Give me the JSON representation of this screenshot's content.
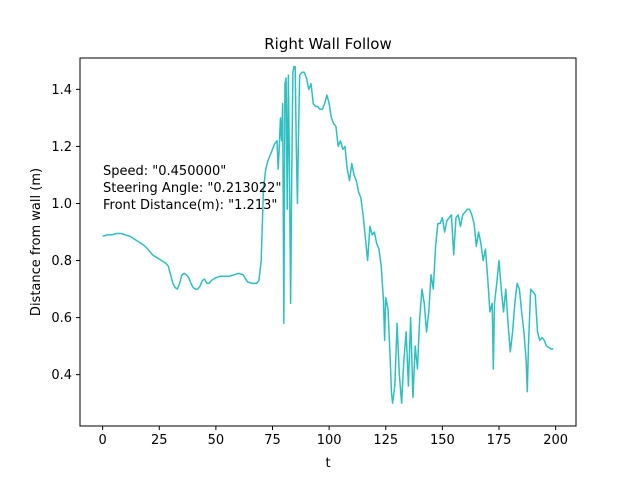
{
  "chart_data": {
    "type": "line",
    "title": "Right Wall Follow",
    "xlabel": "t",
    "ylabel": "Distance from wall (m)",
    "xlim": [
      -10,
      209
    ],
    "ylim": [
      0.22,
      1.51
    ],
    "xticks": [
      0,
      25,
      50,
      75,
      100,
      125,
      150,
      175,
      200
    ],
    "yticks": [
      0.4,
      0.6,
      0.8,
      1.0,
      1.2,
      1.4
    ],
    "ytick_labels": [
      "0.4",
      "0.6",
      "0.8",
      "1.0",
      "1.2",
      "1.4"
    ],
    "grid": false,
    "legend": "none",
    "annotation_lines": [
      "Speed: \"0.450000\"",
      "Steering Angle: \"0.213022\"",
      "Front Distance(m): \"1.213\""
    ],
    "series": [
      {
        "color": "#2ec0c0",
        "values": [
          [
            0,
            0.885
          ],
          [
            2,
            0.89
          ],
          [
            4,
            0.89
          ],
          [
            6,
            0.895
          ],
          [
            8,
            0.895
          ],
          [
            10,
            0.89
          ],
          [
            12,
            0.885
          ],
          [
            14,
            0.875
          ],
          [
            16,
            0.865
          ],
          [
            18,
            0.855
          ],
          [
            20,
            0.84
          ],
          [
            22,
            0.82
          ],
          [
            24,
            0.81
          ],
          [
            26,
            0.8
          ],
          [
            28,
            0.79
          ],
          [
            29,
            0.78
          ],
          [
            30,
            0.75
          ],
          [
            31,
            0.72
          ],
          [
            32,
            0.705
          ],
          [
            33,
            0.7
          ],
          [
            34,
            0.72
          ],
          [
            35,
            0.75
          ],
          [
            36,
            0.755
          ],
          [
            37,
            0.75
          ],
          [
            38,
            0.74
          ],
          [
            39,
            0.72
          ],
          [
            40,
            0.705
          ],
          [
            41,
            0.7
          ],
          [
            42,
            0.7
          ],
          [
            43,
            0.71
          ],
          [
            44,
            0.73
          ],
          [
            45,
            0.735
          ],
          [
            46,
            0.72
          ],
          [
            47,
            0.72
          ],
          [
            48,
            0.73
          ],
          [
            50,
            0.74
          ],
          [
            52,
            0.745
          ],
          [
            54,
            0.745
          ],
          [
            56,
            0.745
          ],
          [
            58,
            0.75
          ],
          [
            60,
            0.755
          ],
          [
            62,
            0.75
          ],
          [
            64,
            0.725
          ],
          [
            66,
            0.72
          ],
          [
            68,
            0.72
          ],
          [
            69,
            0.73
          ],
          [
            70,
            0.8
          ],
          [
            71,
            1.05
          ],
          [
            72,
            1.12
          ],
          [
            73,
            1.15
          ],
          [
            74,
            1.17
          ],
          [
            75,
            1.19
          ],
          [
            76,
            1.21
          ],
          [
            77,
            1.22
          ],
          [
            77.5,
            1.12
          ],
          [
            78,
            1.2
          ],
          [
            78.5,
            1.3
          ],
          [
            79,
            1.22
          ],
          [
            79.5,
            1.35
          ],
          [
            80,
            0.58
          ],
          [
            80.5,
            1.42
          ],
          [
            81,
            1.44
          ],
          [
            81.5,
            0.98
          ],
          [
            82,
            1.45
          ],
          [
            82.5,
            1.1
          ],
          [
            83,
            0.65
          ],
          [
            83.5,
            1.1
          ],
          [
            84,
            1.46
          ],
          [
            84.5,
            1.48
          ],
          [
            85,
            1.48
          ],
          [
            85.5,
            1.2
          ],
          [
            86,
            1.0
          ],
          [
            86.5,
            1.25
          ],
          [
            87,
            1.45
          ],
          [
            88,
            1.46
          ],
          [
            89,
            1.46
          ],
          [
            90,
            1.44
          ],
          [
            91,
            1.4
          ],
          [
            92,
            1.42
          ],
          [
            93,
            1.35
          ],
          [
            94,
            1.34
          ],
          [
            95,
            1.34
          ],
          [
            96,
            1.33
          ],
          [
            97,
            1.33
          ],
          [
            98,
            1.35
          ],
          [
            99,
            1.38
          ],
          [
            100,
            1.35
          ],
          [
            101,
            1.3
          ],
          [
            102,
            1.28
          ],
          [
            103,
            1.27
          ],
          [
            104,
            1.2
          ],
          [
            105,
            1.22
          ],
          [
            106,
            1.19
          ],
          [
            107,
            1.2
          ],
          [
            108,
            1.12
          ],
          [
            109,
            1.08
          ],
          [
            110,
            1.14
          ],
          [
            111,
            1.1
          ],
          [
            112,
            1.08
          ],
          [
            113,
            1.04
          ],
          [
            114,
            1.02
          ],
          [
            115,
            0.96
          ],
          [
            116,
            0.88
          ],
          [
            117,
            0.8
          ],
          [
            118,
            0.92
          ],
          [
            119,
            0.89
          ],
          [
            120,
            0.9
          ],
          [
            121,
            0.86
          ],
          [
            122,
            0.84
          ],
          [
            123,
            0.78
          ],
          [
            124,
            0.66
          ],
          [
            124.5,
            0.52
          ],
          [
            125,
            0.67
          ],
          [
            126,
            0.63
          ],
          [
            127,
            0.45
          ],
          [
            127.5,
            0.34
          ],
          [
            128,
            0.3
          ],
          [
            129,
            0.36
          ],
          [
            130,
            0.58
          ],
          [
            131,
            0.4
          ],
          [
            132,
            0.3
          ],
          [
            133,
            0.45
          ],
          [
            134,
            0.55
          ],
          [
            135,
            0.36
          ],
          [
            136,
            0.6
          ],
          [
            137,
            0.32
          ],
          [
            138,
            0.5
          ],
          [
            139,
            0.42
          ],
          [
            140,
            0.6
          ],
          [
            141,
            0.7
          ],
          [
            142,
            0.65
          ],
          [
            143,
            0.55
          ],
          [
            144,
            0.62
          ],
          [
            145,
            0.75
          ],
          [
            146,
            0.7
          ],
          [
            147,
            0.85
          ],
          [
            148,
            0.93
          ],
          [
            149,
            0.93
          ],
          [
            150,
            0.95
          ],
          [
            151,
            0.9
          ],
          [
            152,
            0.94
          ],
          [
            153,
            0.95
          ],
          [
            154,
            0.96
          ],
          [
            155,
            0.82
          ],
          [
            156,
            0.95
          ],
          [
            157,
            0.96
          ],
          [
            158,
            0.92
          ],
          [
            159,
            0.96
          ],
          [
            160,
            0.97
          ],
          [
            161,
            0.98
          ],
          [
            162,
            0.98
          ],
          [
            163,
            0.96
          ],
          [
            164,
            0.93
          ],
          [
            165,
            0.85
          ],
          [
            166,
            0.9
          ],
          [
            167,
            0.86
          ],
          [
            168,
            0.8
          ],
          [
            169,
            0.84
          ],
          [
            170,
            0.74
          ],
          [
            171,
            0.62
          ],
          [
            172,
            0.65
          ],
          [
            172.5,
            0.42
          ],
          [
            173,
            0.65
          ],
          [
            174,
            0.72
          ],
          [
            175,
            0.8
          ],
          [
            176,
            0.7
          ],
          [
            177,
            0.62
          ],
          [
            178,
            0.7
          ],
          [
            179,
            0.58
          ],
          [
            180,
            0.48
          ],
          [
            181,
            0.55
          ],
          [
            182,
            0.65
          ],
          [
            183,
            0.72
          ],
          [
            184,
            0.7
          ],
          [
            185,
            0.62
          ],
          [
            186,
            0.55
          ],
          [
            187,
            0.45
          ],
          [
            187.5,
            0.34
          ],
          [
            188,
            0.5
          ],
          [
            189,
            0.7
          ],
          [
            190,
            0.69
          ],
          [
            191,
            0.68
          ],
          [
            192,
            0.55
          ],
          [
            193,
            0.52
          ],
          [
            194,
            0.53
          ],
          [
            195,
            0.52
          ],
          [
            196,
            0.5
          ],
          [
            198,
            0.49
          ],
          [
            199,
            0.49
          ]
        ]
      }
    ]
  }
}
